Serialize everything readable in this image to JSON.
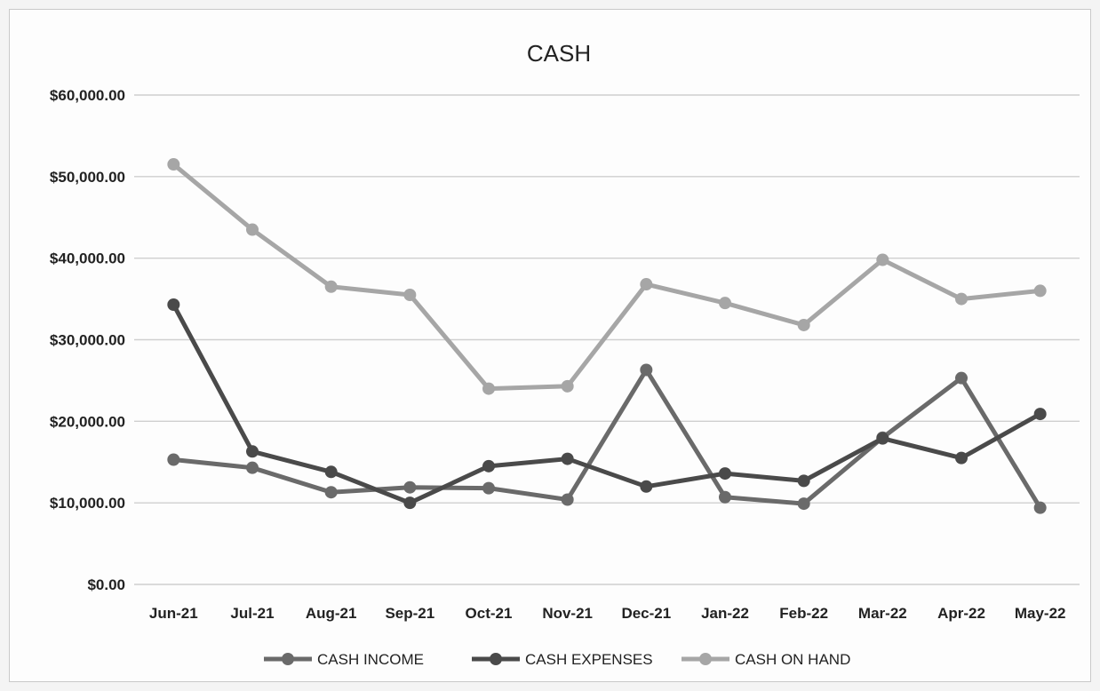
{
  "chart_data": {
    "type": "line",
    "title": "CASH",
    "xlabel": "",
    "ylabel": "",
    "categories": [
      "Jun-21",
      "Jul-21",
      "Aug-21",
      "Sep-21",
      "Oct-21",
      "Nov-21",
      "Dec-21",
      "Jan-22",
      "Feb-22",
      "Mar-22",
      "Apr-22",
      "May-22"
    ],
    "y_ticks": [
      "$0.00",
      "$10,000.00",
      "$20,000.00",
      "$30,000.00",
      "$40,000.00",
      "$50,000.00",
      "$60,000.00"
    ],
    "ylim": [
      0,
      60000
    ],
    "grid": true,
    "legend_position": "bottom",
    "series": [
      {
        "name": "CASH INCOME",
        "color": "#6a6a6a",
        "values": [
          15300,
          14300,
          11300,
          11900,
          11800,
          10400,
          26300,
          10700,
          9900,
          18000,
          25300,
          9400
        ]
      },
      {
        "name": "CASH EXPENSES",
        "color": "#4a4a4a",
        "values": [
          34300,
          16300,
          13800,
          10000,
          14500,
          15400,
          12000,
          13600,
          12700,
          17900,
          15500,
          20900
        ]
      },
      {
        "name": "CASH ON HAND",
        "color": "#a6a6a6",
        "values": [
          51500,
          43500,
          36500,
          35500,
          24000,
          24300,
          36800,
          34500,
          31800,
          39800,
          35000,
          36000
        ]
      }
    ]
  }
}
